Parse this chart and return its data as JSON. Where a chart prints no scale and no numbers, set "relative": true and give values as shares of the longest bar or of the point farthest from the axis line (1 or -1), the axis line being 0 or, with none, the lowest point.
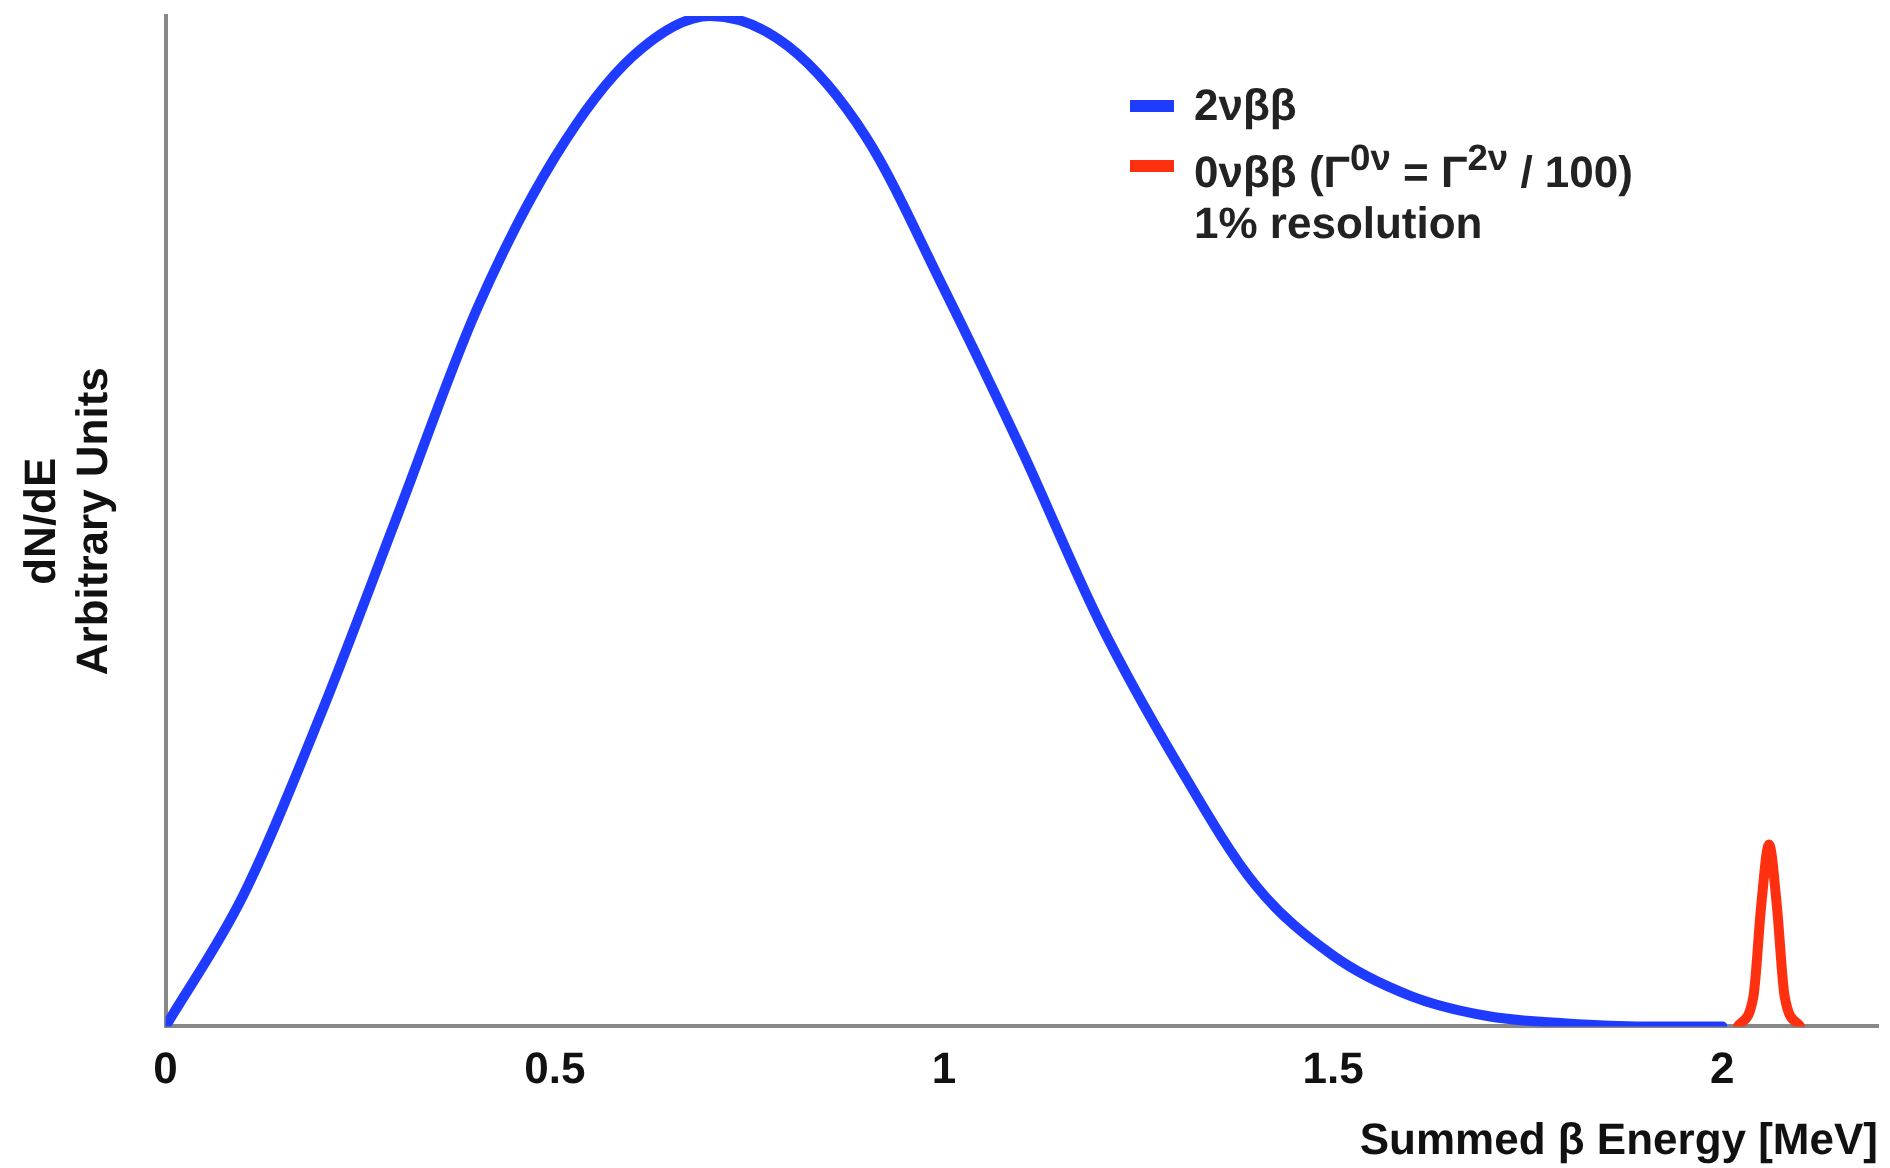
{
  "chart_data": {
    "type": "line",
    "xlabel": "Summed β Energy [MeV]",
    "ylabel": "dN/dE\nArbitrary Units",
    "relative": true,
    "xlim": [
      0,
      2.2
    ],
    "xticks": [
      0,
      0.5,
      1,
      1.5,
      2
    ],
    "grid": false,
    "legend": "top right",
    "marker": "none",
    "annotations": [
      "1% resolution"
    ],
    "series": [
      {
        "name": "2νββ",
        "color": "#1f3bff",
        "x": [
          0,
          0.1,
          0.2,
          0.3,
          0.4,
          0.5,
          0.6,
          0.7,
          0.8,
          0.9,
          1.0,
          1.1,
          1.2,
          1.3,
          1.4,
          1.5,
          1.6,
          1.7,
          1.8,
          1.9,
          2.0
        ],
        "values": [
          0,
          0.13,
          0.31,
          0.51,
          0.71,
          0.86,
          0.96,
          1,
          0.97,
          0.88,
          0.73,
          0.57,
          0.4,
          0.26,
          0.14,
          0.07,
          0.03,
          0.01,
          0.003,
          0,
          0
        ]
      },
      {
        "name": "0νββ (Γ$^{0ν}$ = Γ$^{2ν}$ / 100)",
        "color": "#ff3010",
        "x": [
          2.02,
          2.04,
          2.05,
          2.06,
          2.07,
          2.08,
          2.1
        ],
        "values": [
          0,
          0.03,
          0.12,
          0.18,
          0.12,
          0.03,
          0
        ]
      }
    ]
  }
}
